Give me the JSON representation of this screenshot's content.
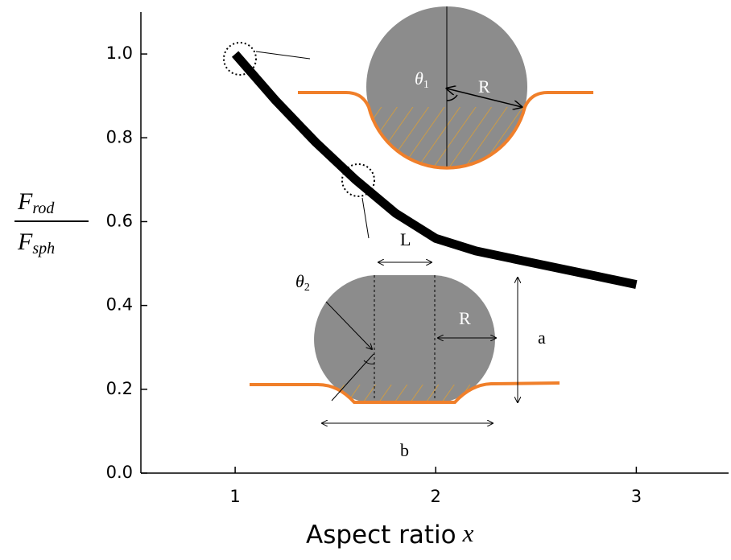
{
  "chart_data": {
    "type": "line",
    "x_label": {
      "text": "Aspect ratio",
      "variable": "x"
    },
    "y_label": {
      "numerator": "F",
      "numerator_sub": "rod",
      "denominator": "F",
      "denominator_sub": "sph"
    },
    "x": [
      1,
      1.2,
      1.4,
      1.6,
      1.8,
      2,
      2.2,
      2.4,
      2.6,
      2.8,
      3
    ],
    "values": [
      1.0,
      0.89,
      0.79,
      0.7,
      0.62,
      0.56,
      0.53,
      0.51,
      0.49,
      0.47,
      0.45
    ],
    "color": "#000000",
    "xlim": [
      0.53,
      3.46
    ],
    "ylim": [
      0,
      1.1
    ],
    "xticks": [
      1,
      2,
      3
    ],
    "yticks": [
      {
        "value": 0,
        "label": "0.0"
      },
      {
        "value": 0.2,
        "label": "0.2"
      },
      {
        "value": 0.4,
        "label": "0.4"
      },
      {
        "value": 0.6,
        "label": "0.6"
      },
      {
        "value": 0.8,
        "label": "0.8"
      },
      {
        "value": 1.0,
        "label": "1.0"
      }
    ],
    "insets": {
      "sphere": {
        "theta": "θ",
        "theta_sub": "1",
        "radius": "R"
      },
      "rod": {
        "theta": "θ",
        "theta_sub": "2",
        "length": "L",
        "radius": "R",
        "height": "a",
        "width": "b"
      }
    }
  }
}
